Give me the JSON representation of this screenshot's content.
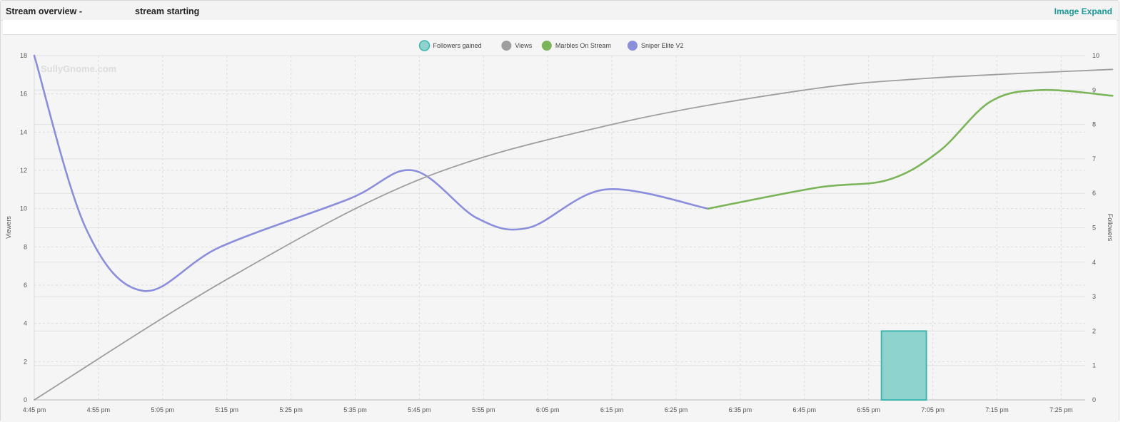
{
  "header": {
    "title": "Stream overview -",
    "subtitle": "stream starting",
    "expand_label": "Image Expand"
  },
  "watermark": "SullyGnome.com",
  "colors": {
    "followers": "#8fd3cf",
    "followers_border": "#3fb5ad",
    "views": "#9e9e9e",
    "marbles": "#7cb45a",
    "sniper": "#8b8fdb",
    "accent": "#1a9a9a"
  },
  "chart_data": {
    "type": "line",
    "x_ticks": [
      "4:45 pm",
      "4:55 pm",
      "5:05 pm",
      "5:15 pm",
      "5:25 pm",
      "5:35 pm",
      "5:45 pm",
      "5:55 pm",
      "6:05 pm",
      "6:15 pm",
      "6:25 pm",
      "6:35 pm",
      "6:45 pm",
      "6:55 pm",
      "7:05 pm",
      "7:15 pm",
      "7:25 pm"
    ],
    "ylabel_left": "Viewers",
    "ylabel_right": "Followers",
    "y_left_range": [
      0,
      18
    ],
    "y_right_range": [
      0,
      10
    ],
    "y_left_ticks": [
      0,
      2,
      4,
      6,
      8,
      10,
      12,
      14,
      16,
      18
    ],
    "y_right_ticks": [
      0,
      1,
      2,
      3,
      4,
      5,
      6,
      7,
      8,
      9,
      10
    ],
    "grid": true,
    "legend_position": "top",
    "legend": [
      "Followers gained",
      "Views",
      "Marbles On Stream",
      "Sniper Elite V2"
    ],
    "series": [
      {
        "name": "Sniper Elite V2",
        "axis": "left",
        "points": [
          [
            "4:45 pm",
            18
          ],
          [
            "4:53 pm",
            9
          ],
          [
            "5:02 pm",
            5.7
          ],
          [
            "5:14 pm",
            8
          ],
          [
            "5:34 pm",
            10.5
          ],
          [
            "5:44 pm",
            12
          ],
          [
            "5:54 pm",
            9.5
          ],
          [
            "6:02 pm",
            9
          ],
          [
            "6:14 pm",
            11
          ],
          [
            "6:30 pm",
            10
          ]
        ]
      },
      {
        "name": "Marbles On Stream",
        "axis": "left",
        "points": [
          [
            "6:30 pm",
            10
          ],
          [
            "6:47 pm",
            11.1
          ],
          [
            "6:58 pm",
            11.5
          ],
          [
            "7:06 pm",
            13
          ],
          [
            "7:14 pm",
            15.6
          ],
          [
            "7:22 pm",
            16.2
          ],
          [
            "7:33 pm",
            15.9
          ]
        ]
      },
      {
        "name": "Views",
        "axis": "right",
        "points": [
          [
            "4:45 pm",
            0
          ],
          [
            "5:15 pm",
            3.5
          ],
          [
            "5:45 pm",
            6.4
          ],
          [
            "6:15 pm",
            8
          ],
          [
            "6:45 pm",
            9
          ],
          [
            "7:05 pm",
            9.35
          ],
          [
            "7:33 pm",
            9.6
          ]
        ]
      },
      {
        "name": "Followers gained",
        "axis": "right",
        "type": "bar",
        "bars": [
          {
            "start": "6:57 pm",
            "end": "7:04 pm",
            "value": 2
          }
        ]
      }
    ]
  }
}
